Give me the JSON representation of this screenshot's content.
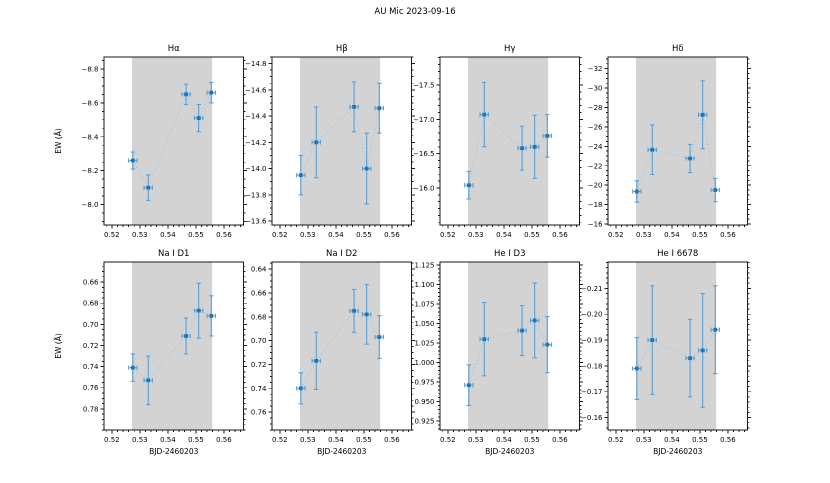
{
  "chart_data": {
    "type": "scatter",
    "figure_title": "AU Mic 2023-09-16",
    "xlabel": "BJD-2460203",
    "ylabel": "EW (Å)",
    "x": [
      0.5275,
      0.533,
      0.5465,
      0.551,
      0.5555
    ],
    "xerr": 0.0015,
    "xlim": [
      0.5172,
      0.567
    ],
    "xticks": [
      0.52,
      0.53,
      0.54,
      0.55,
      0.56
    ],
    "xtick_decimals": 2,
    "x_minor_step": 0.002,
    "shaded_band": [
      0.5272,
      0.5558
    ],
    "band_color": "#d3d3d3",
    "marker_color": "#1f77b4",
    "errorbar_color": "#5b9fd4",
    "line_color": "#9ec3e0",
    "line_style": "dotted",
    "grid": false,
    "legend": null,
    "panels": [
      {
        "title": "Hα",
        "ylim_top": -8.87,
        "ylim_bottom": -7.88,
        "yticks": [
          -8.8,
          -8.6,
          -8.4,
          -8.2,
          -8.0
        ],
        "ytick_decimals": 1,
        "y_minor_step": 0.05,
        "y": [
          -8.26,
          -8.1,
          -8.65,
          -8.51,
          -8.66
        ],
        "yerr": [
          0.05,
          0.075,
          0.06,
          0.08,
          0.06
        ]
      },
      {
        "title": "Hβ",
        "ylim_top": -14.85,
        "ylim_bottom": -13.57,
        "yticks": [
          -14.8,
          -14.6,
          -14.4,
          -14.2,
          -14.0,
          -13.8,
          -13.6
        ],
        "ytick_decimals": 1,
        "y_minor_step": 0.05,
        "y": [
          -13.95,
          -14.2,
          -14.47,
          -14.0,
          -14.46
        ],
        "yerr": [
          0.15,
          0.27,
          0.19,
          0.27,
          0.19
        ]
      },
      {
        "title": "Hγ",
        "ylim_top": -17.91,
        "ylim_bottom": -15.46,
        "yticks": [
          -17.5,
          -17.0,
          -16.5,
          -16.0
        ],
        "ytick_decimals": 1,
        "y_minor_step": 0.1,
        "y": [
          -16.04,
          -17.07,
          -16.58,
          -16.6,
          -16.76
        ],
        "yerr": [
          0.2,
          0.47,
          0.32,
          0.46,
          0.31
        ]
      },
      {
        "title": "Hδ",
        "ylim_top": -33.2,
        "ylim_bottom": -15.9,
        "yticks": [
          -32,
          -30,
          -28,
          -26,
          -24,
          -22,
          -20,
          -18,
          -16
        ],
        "ytick_decimals": 0,
        "y_minor_step": 0.5,
        "y": [
          -19.35,
          -23.65,
          -22.75,
          -27.25,
          -19.5
        ],
        "yerr": [
          1.1,
          2.55,
          1.45,
          3.5,
          1.2
        ]
      },
      {
        "title": "Na I D1",
        "ylim_top": 0.641,
        "ylim_bottom": 0.8,
        "yticks": [
          0.66,
          0.68,
          0.7,
          0.72,
          0.74,
          0.76,
          0.78
        ],
        "ytick_decimals": 2,
        "y_minor_step": 0.005,
        "y": [
          0.741,
          0.753,
          0.711,
          0.687,
          0.692
        ],
        "yerr": [
          0.013,
          0.023,
          0.017,
          0.026,
          0.019
        ]
      },
      {
        "title": "Na I D2",
        "ylim_top": 0.634,
        "ylim_bottom": 0.775,
        "yticks": [
          0.64,
          0.66,
          0.68,
          0.7,
          0.72,
          0.74,
          0.76
        ],
        "ytick_decimals": 2,
        "y_minor_step": 0.005,
        "y": [
          0.74,
          0.717,
          0.675,
          0.678,
          0.697
        ],
        "yerr": [
          0.013,
          0.024,
          0.018,
          0.025,
          0.018
        ]
      },
      {
        "title": "He I D3",
        "ylim_top": 1.129,
        "ylim_bottom": 0.9135,
        "yticks": [
          1.125,
          1.1,
          1.075,
          1.05,
          1.025,
          1.0,
          0.975,
          0.95,
          0.925
        ],
        "ytick_decimals": 3,
        "y_minor_step": 0.005,
        "y": [
          0.971,
          1.03,
          1.041,
          1.054,
          1.023
        ],
        "yerr": [
          0.026,
          0.047,
          0.032,
          0.048,
          0.036
        ]
      },
      {
        "title": "He I 6678",
        "ylim_top": -0.2202,
        "ylim_bottom": -0.1552,
        "yticks": [
          -0.21,
          -0.2,
          -0.19,
          -0.18,
          -0.17,
          -0.16
        ],
        "ytick_decimals": 2,
        "y_minor_step": 0.002,
        "y": [
          -0.179,
          -0.19,
          -0.183,
          -0.186,
          -0.194
        ],
        "yerr": [
          0.012,
          0.021,
          0.015,
          0.022,
          0.017
        ]
      }
    ]
  }
}
